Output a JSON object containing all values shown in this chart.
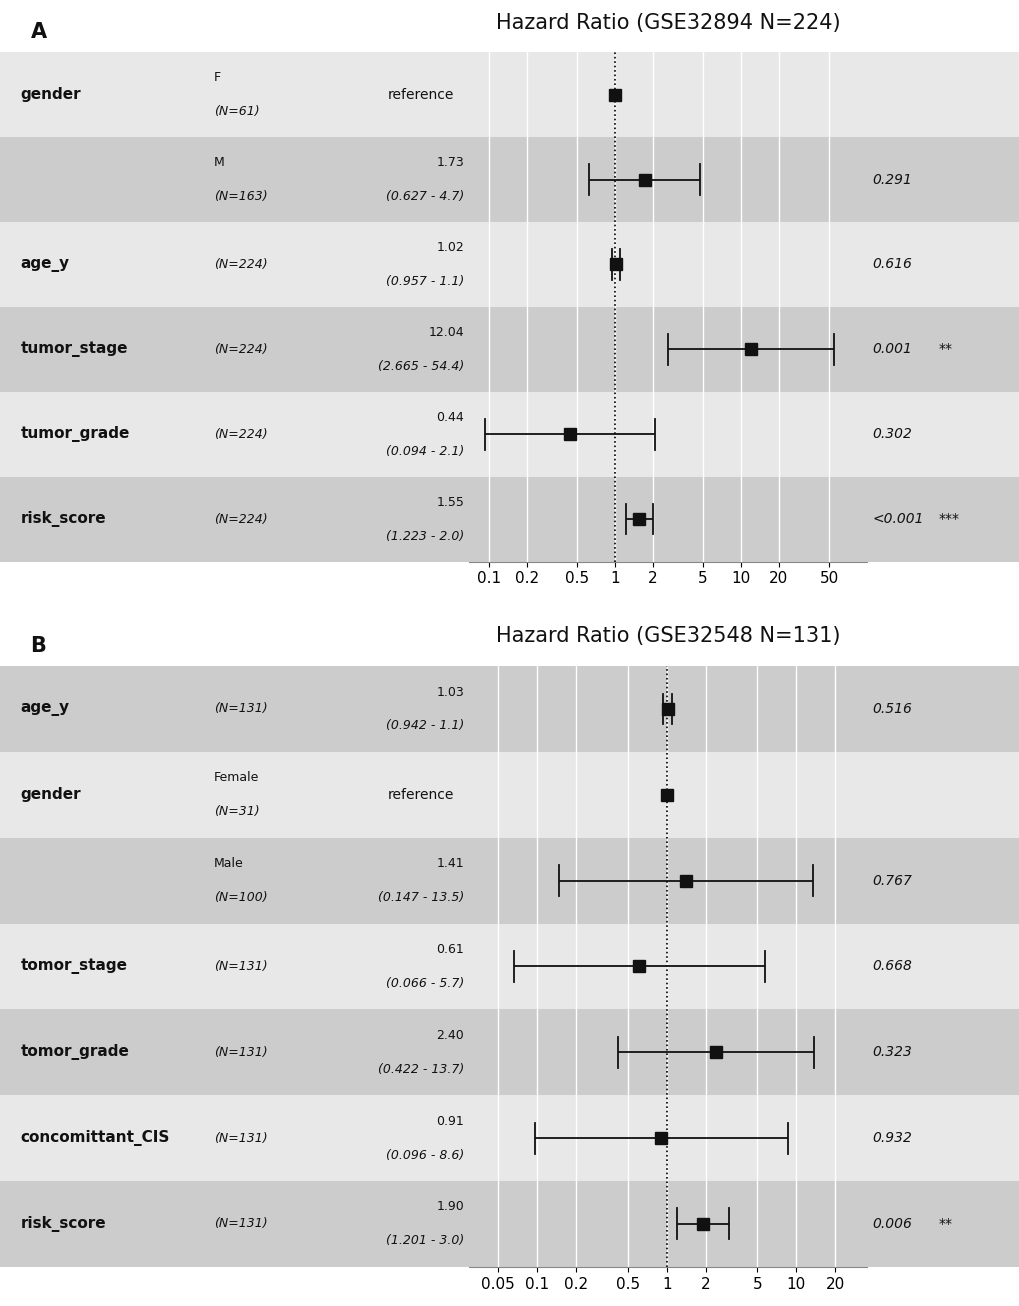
{
  "panel_A": {
    "title": "Hazard Ratio (GSE32894 N=224)",
    "panel_label": "A",
    "rows": [
      {
        "label": "gender",
        "sublabel": "F\n(N=61)",
        "ci_text": "reference",
        "hr": 1.0,
        "ci_lo": null,
        "ci_hi": null,
        "pval_text": "",
        "pval_sig": "",
        "is_reference": true,
        "shaded": false
      },
      {
        "label": "",
        "sublabel": "M\n(N=163)",
        "ci_text": "1.73\n(0.627 - 4.7)",
        "hr": 1.73,
        "ci_lo": 0.627,
        "ci_hi": 4.7,
        "pval_text": "0.291",
        "pval_sig": "",
        "is_reference": false,
        "shaded": true
      },
      {
        "label": "age_y",
        "sublabel": "(N=224)",
        "ci_text": "1.02\n(0.957 - 1.1)",
        "hr": 1.02,
        "ci_lo": 0.957,
        "ci_hi": 1.1,
        "pval_text": "0.616",
        "pval_sig": "",
        "is_reference": false,
        "shaded": false
      },
      {
        "label": "tumor_stage",
        "sublabel": "(N=224)",
        "ci_text": "12.04\n(2.665 - 54.4)",
        "hr": 12.04,
        "ci_lo": 2.665,
        "ci_hi": 54.4,
        "pval_text": "0.001",
        "pval_sig": "**",
        "is_reference": false,
        "shaded": true
      },
      {
        "label": "tumor_grade",
        "sublabel": "(N=224)",
        "ci_text": "0.44\n(0.094 - 2.1)",
        "hr": 0.44,
        "ci_lo": 0.094,
        "ci_hi": 2.1,
        "pval_text": "0.302",
        "pval_sig": "",
        "is_reference": false,
        "shaded": false
      },
      {
        "label": "risk_score",
        "sublabel": "(N=224)",
        "ci_text": "1.55\n(1.223 - 2.0)",
        "hr": 1.55,
        "ci_lo": 1.223,
        "ci_hi": 2.0,
        "pval_text": "<0.001",
        "pval_sig": "***",
        "is_reference": false,
        "shaded": true
      }
    ],
    "xticks": [
      0.1,
      0.2,
      0.5,
      1,
      2,
      5,
      10,
      20,
      50
    ],
    "xtick_labels": [
      "0.1",
      "0.2",
      "0.5",
      "1",
      "2",
      "5",
      "10",
      "20",
      "50"
    ],
    "xmin": 0.07,
    "xmax": 100,
    "vline_x": 1.0
  },
  "panel_B": {
    "title": "Hazard Ratio (GSE32548 N=131)",
    "panel_label": "B",
    "rows": [
      {
        "label": "age_y",
        "sublabel": "(N=131)",
        "ci_text": "1.03\n(0.942 - 1.1)",
        "hr": 1.03,
        "ci_lo": 0.942,
        "ci_hi": 1.1,
        "pval_text": "0.516",
        "pval_sig": "",
        "is_reference": false,
        "shaded": true
      },
      {
        "label": "gender",
        "sublabel": "Female\n(N=31)",
        "ci_text": "reference",
        "hr": 1.0,
        "ci_lo": null,
        "ci_hi": null,
        "pval_text": "",
        "pval_sig": "",
        "is_reference": true,
        "shaded": false
      },
      {
        "label": "",
        "sublabel": "Male\n(N=100)",
        "ci_text": "1.41\n(0.147 - 13.5)",
        "hr": 1.41,
        "ci_lo": 0.147,
        "ci_hi": 13.5,
        "pval_text": "0.767",
        "pval_sig": "",
        "is_reference": false,
        "shaded": true
      },
      {
        "label": "tomor_stage",
        "sublabel": "(N=131)",
        "ci_text": "0.61\n(0.066 - 5.7)",
        "hr": 0.61,
        "ci_lo": 0.066,
        "ci_hi": 5.7,
        "pval_text": "0.668",
        "pval_sig": "",
        "is_reference": false,
        "shaded": false
      },
      {
        "label": "tomor_grade",
        "sublabel": "(N=131)",
        "ci_text": "2.40\n(0.422 - 13.7)",
        "hr": 2.4,
        "ci_lo": 0.422,
        "ci_hi": 13.7,
        "pval_text": "0.323",
        "pval_sig": "",
        "is_reference": false,
        "shaded": true
      },
      {
        "label": "concomittant_CIS",
        "sublabel": "(N=131)",
        "ci_text": "0.91\n(0.096 - 8.6)",
        "hr": 0.91,
        "ci_lo": 0.096,
        "ci_hi": 8.6,
        "pval_text": "0.932",
        "pval_sig": "",
        "is_reference": false,
        "shaded": false
      },
      {
        "label": "risk_score",
        "sublabel": "(N=131)",
        "ci_text": "1.90\n(1.201 - 3.0)",
        "hr": 1.9,
        "ci_lo": 1.201,
        "ci_hi": 3.0,
        "pval_text": "0.006",
        "pval_sig": "**",
        "is_reference": false,
        "shaded": true
      }
    ],
    "xticks": [
      0.05,
      0.1,
      0.2,
      0.5,
      1,
      2,
      5,
      10,
      20
    ],
    "xtick_labels": [
      "0.05",
      "0.1",
      "0.2",
      "0.5",
      "1",
      "2",
      "5",
      "10",
      "20"
    ],
    "xmin": 0.03,
    "xmax": 35,
    "vline_x": 1.0
  },
  "shaded_color": "#cccccc",
  "unshaded_color": "#e8e8e8",
  "square_color": "#111111",
  "line_color": "#111111",
  "text_color": "#111111",
  "fig_bg": "#ffffff",
  "fig_width": 10.2,
  "fig_height": 13.06
}
